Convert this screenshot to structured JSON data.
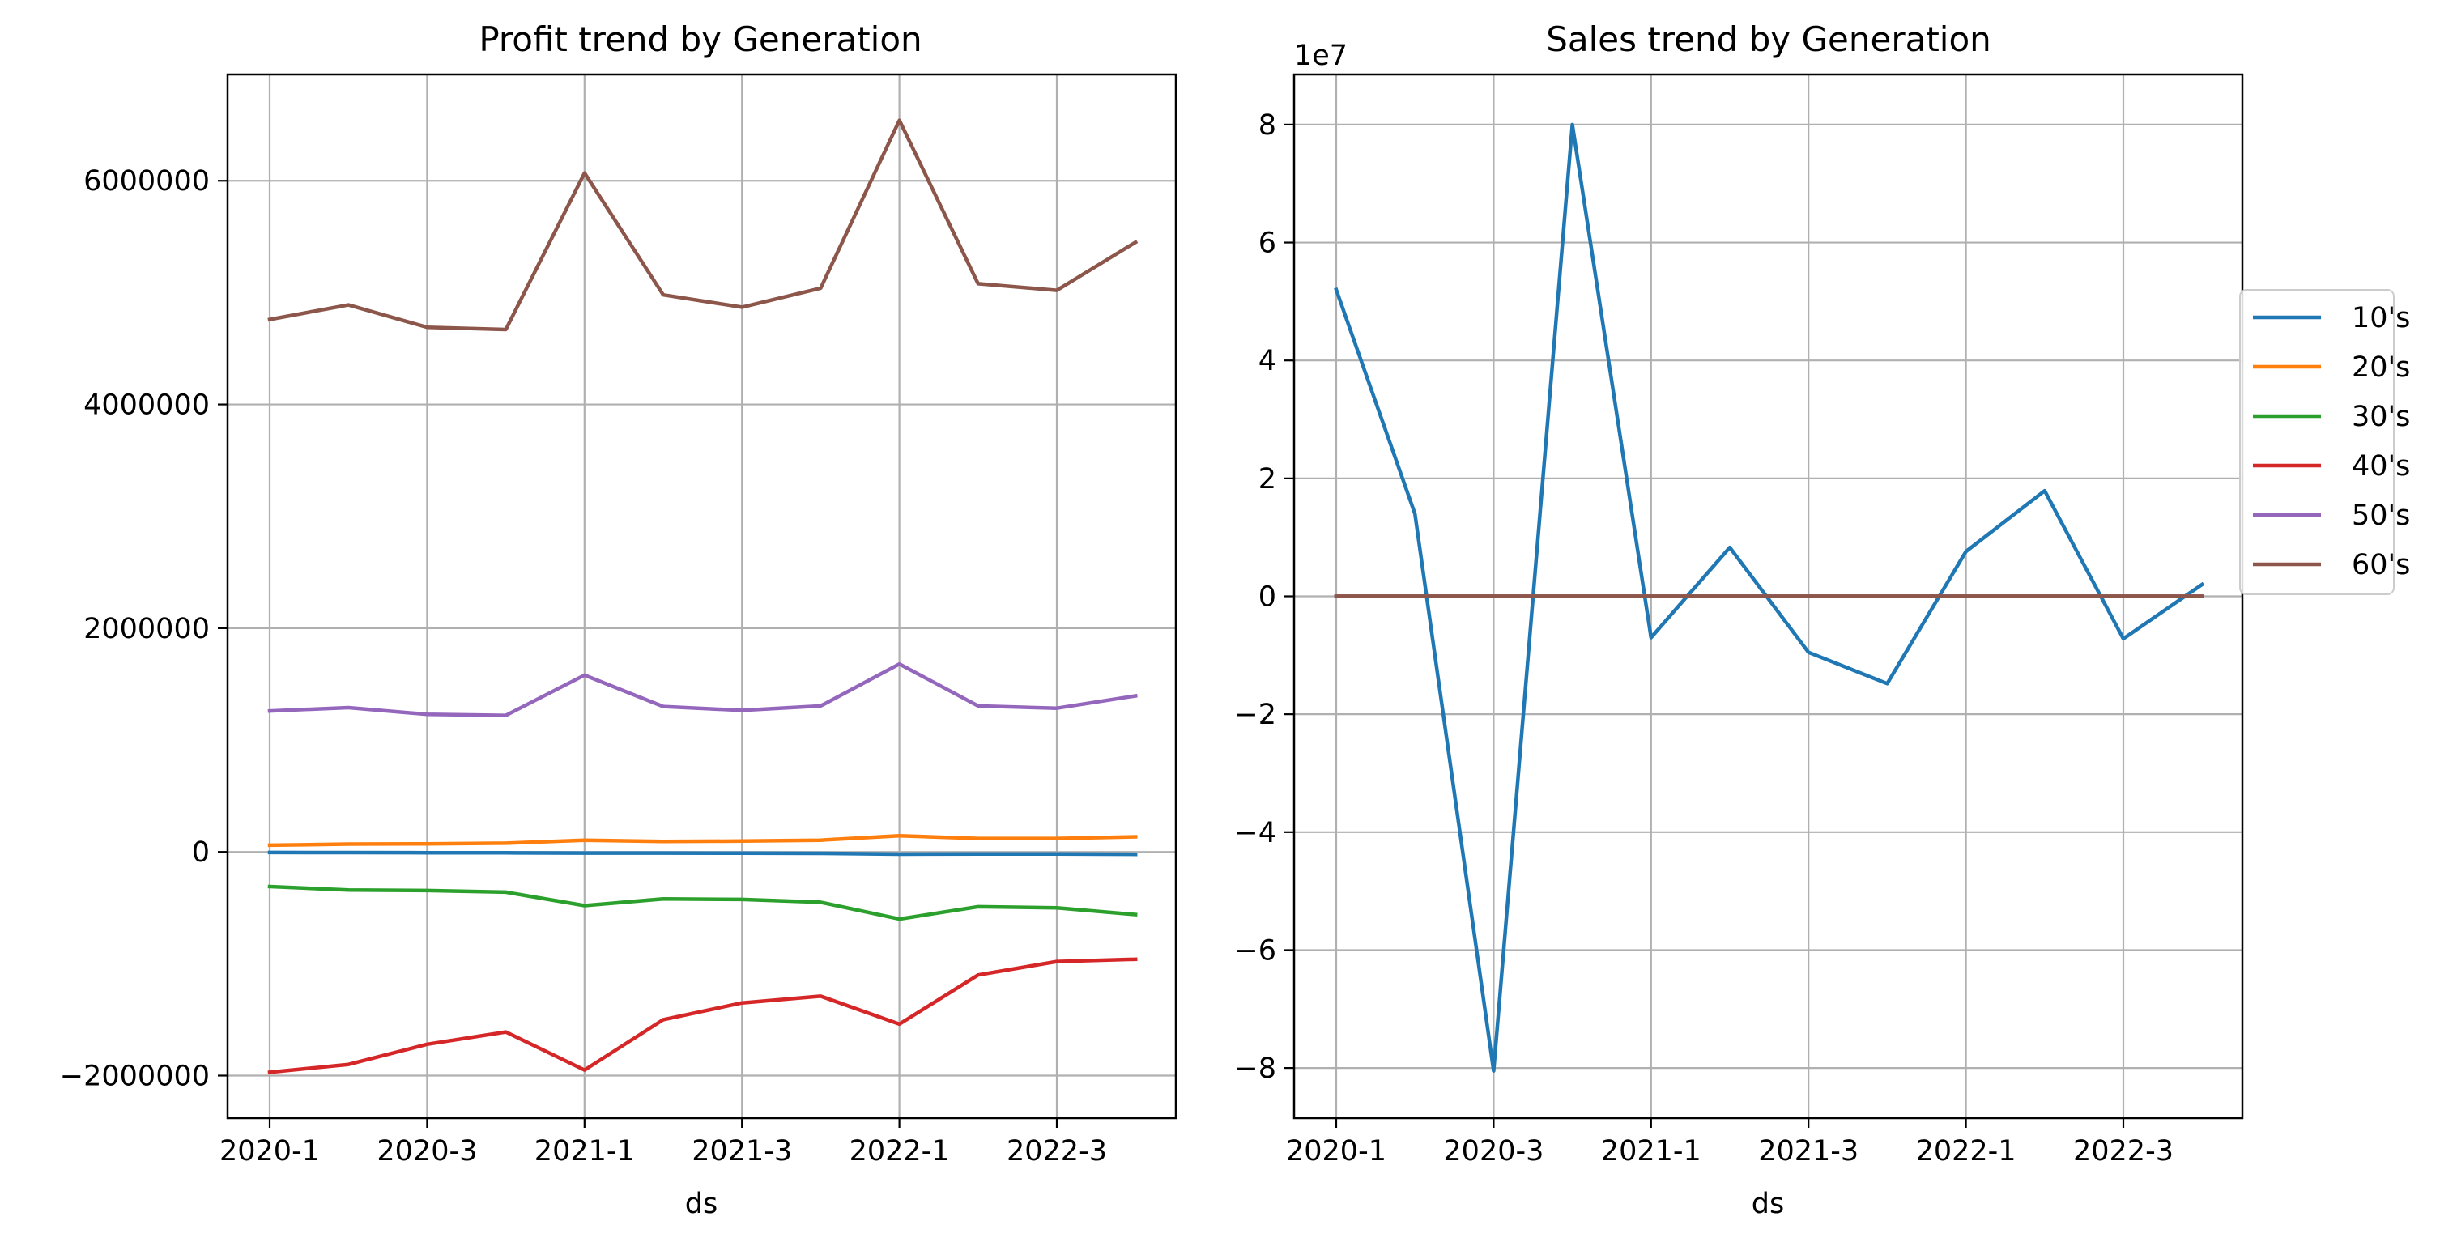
{
  "chart_data": [
    {
      "type": "line",
      "title": "Profit trend by Generation",
      "xlabel": "ds",
      "ylabel": "",
      "x": [
        "2020-1",
        "2020-2",
        "2020-3",
        "2020-4",
        "2021-1",
        "2021-2",
        "2021-3",
        "2021-4",
        "2022-1",
        "2022-2",
        "2022-3",
        "2022-4"
      ],
      "xticks": [
        "2020-1",
        "2020-3",
        "2021-1",
        "2021-3",
        "2022-1",
        "2022-3"
      ],
      "yticks": [
        -2000000,
        0,
        2000000,
        4000000,
        6000000
      ],
      "ytick_labels": [
        "−2000000",
        "0",
        "2000000",
        "4000000",
        "6000000"
      ],
      "ylim": [
        -2380000,
        6950000
      ],
      "grid": true,
      "series": [
        {
          "name": "10's",
          "color": "#1f77b4",
          "values": [
            -5000,
            -6000,
            -7000,
            -8000,
            -10000,
            -10000,
            -12000,
            -13000,
            -20000,
            -18000,
            -19000,
            -22000
          ]
        },
        {
          "name": "20's",
          "color": "#ff7f0e",
          "values": [
            60000,
            70000,
            72000,
            78000,
            105000,
            93000,
            97000,
            105000,
            145000,
            120000,
            120000,
            135000
          ]
        },
        {
          "name": "30's",
          "color": "#2ca02c",
          "values": [
            -310000,
            -340000,
            -345000,
            -360000,
            -480000,
            -420000,
            -425000,
            -450000,
            -600000,
            -490000,
            -500000,
            -560000
          ]
        },
        {
          "name": "40's",
          "color": "#d62728",
          "values": [
            -1970000,
            -1900000,
            -1720000,
            -1610000,
            -1950000,
            -1500000,
            -1350000,
            -1290000,
            -1540000,
            -1100000,
            -980000,
            -960000
          ]
        },
        {
          "name": "50's",
          "color": "#9467bd",
          "values": [
            1260000,
            1290000,
            1230000,
            1220000,
            1580000,
            1300000,
            1265000,
            1305000,
            1680000,
            1305000,
            1285000,
            1395000
          ]
        },
        {
          "name": "60's",
          "color": "#8c564b",
          "values": [
            4760000,
            4890000,
            4690000,
            4670000,
            6070000,
            4980000,
            4870000,
            5040000,
            6540000,
            5080000,
            5020000,
            5450000
          ]
        }
      ]
    },
    {
      "type": "line",
      "title": "Sales trend by Generation",
      "xlabel": "ds",
      "ylabel": "",
      "offset_label": "1e7",
      "x": [
        "2020-1",
        "2020-2",
        "2020-3",
        "2020-4",
        "2021-1",
        "2021-2",
        "2021-3",
        "2021-4",
        "2022-1",
        "2022-2",
        "2022-3",
        "2022-4"
      ],
      "xticks": [
        "2020-1",
        "2020-3",
        "2021-1",
        "2021-3",
        "2022-1",
        "2022-3"
      ],
      "yticks": [
        -8,
        -6,
        -4,
        -2,
        0,
        2,
        4,
        6,
        8
      ],
      "ytick_labels": [
        "−8",
        "−6",
        "−4",
        "−2",
        "0",
        "2",
        "4",
        "6",
        "8"
      ],
      "ylim": [
        -8.85,
        8.85
      ],
      "y_scale_factor": 10000000,
      "grid": true,
      "legend_position": "center-right",
      "series": [
        {
          "name": "10's",
          "color": "#1f77b4",
          "values": [
            52000000,
            14000000,
            -80500000,
            80000000,
            -7000000,
            8300000,
            -9500000,
            -14800000,
            7600000,
            17900000,
            -7200000,
            2000000
          ]
        },
        {
          "name": "20's",
          "color": "#ff7f0e",
          "values": [
            0,
            0,
            0,
            0,
            0,
            0,
            0,
            0,
            0,
            0,
            0,
            0
          ]
        },
        {
          "name": "30's",
          "color": "#2ca02c",
          "values": [
            0,
            0,
            0,
            0,
            0,
            0,
            0,
            0,
            0,
            0,
            0,
            0
          ]
        },
        {
          "name": "40's",
          "color": "#d62728",
          "values": [
            0,
            0,
            0,
            0,
            0,
            0,
            0,
            0,
            0,
            0,
            0,
            0
          ]
        },
        {
          "name": "50's",
          "color": "#9467bd",
          "values": [
            0,
            0,
            0,
            0,
            0,
            0,
            0,
            0,
            0,
            0,
            0,
            0
          ]
        },
        {
          "name": "60's",
          "color": "#8c564b",
          "values": [
            0,
            0,
            0,
            0,
            0,
            0,
            0,
            0,
            0,
            0,
            0,
            0
          ]
        }
      ]
    }
  ]
}
